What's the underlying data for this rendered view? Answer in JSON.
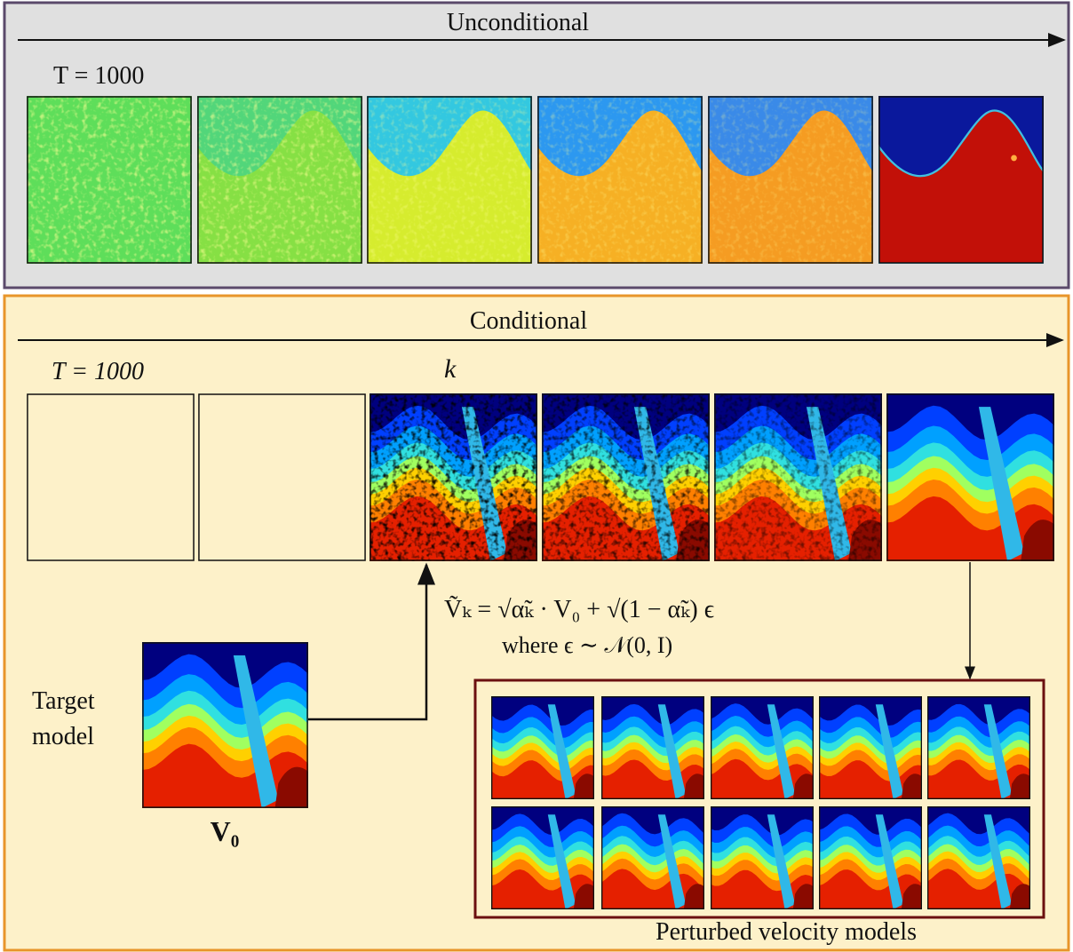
{
  "unconditional": {
    "title": "Unconditional",
    "time_label": "T = 1000"
  },
  "conditional": {
    "title": "Conditional",
    "time_label": "T = 1000",
    "step_label": "k",
    "formula": "Ṽₖ = √α̃ₖ · V₀ + √(1 − α̃ₖ) ϵ",
    "formula_note": "where ϵ ∼ 𝒩(0, I)",
    "target_label": "Target model",
    "target_symbol": "V₀",
    "perturbed_label": "Perturbed velocity models"
  }
}
